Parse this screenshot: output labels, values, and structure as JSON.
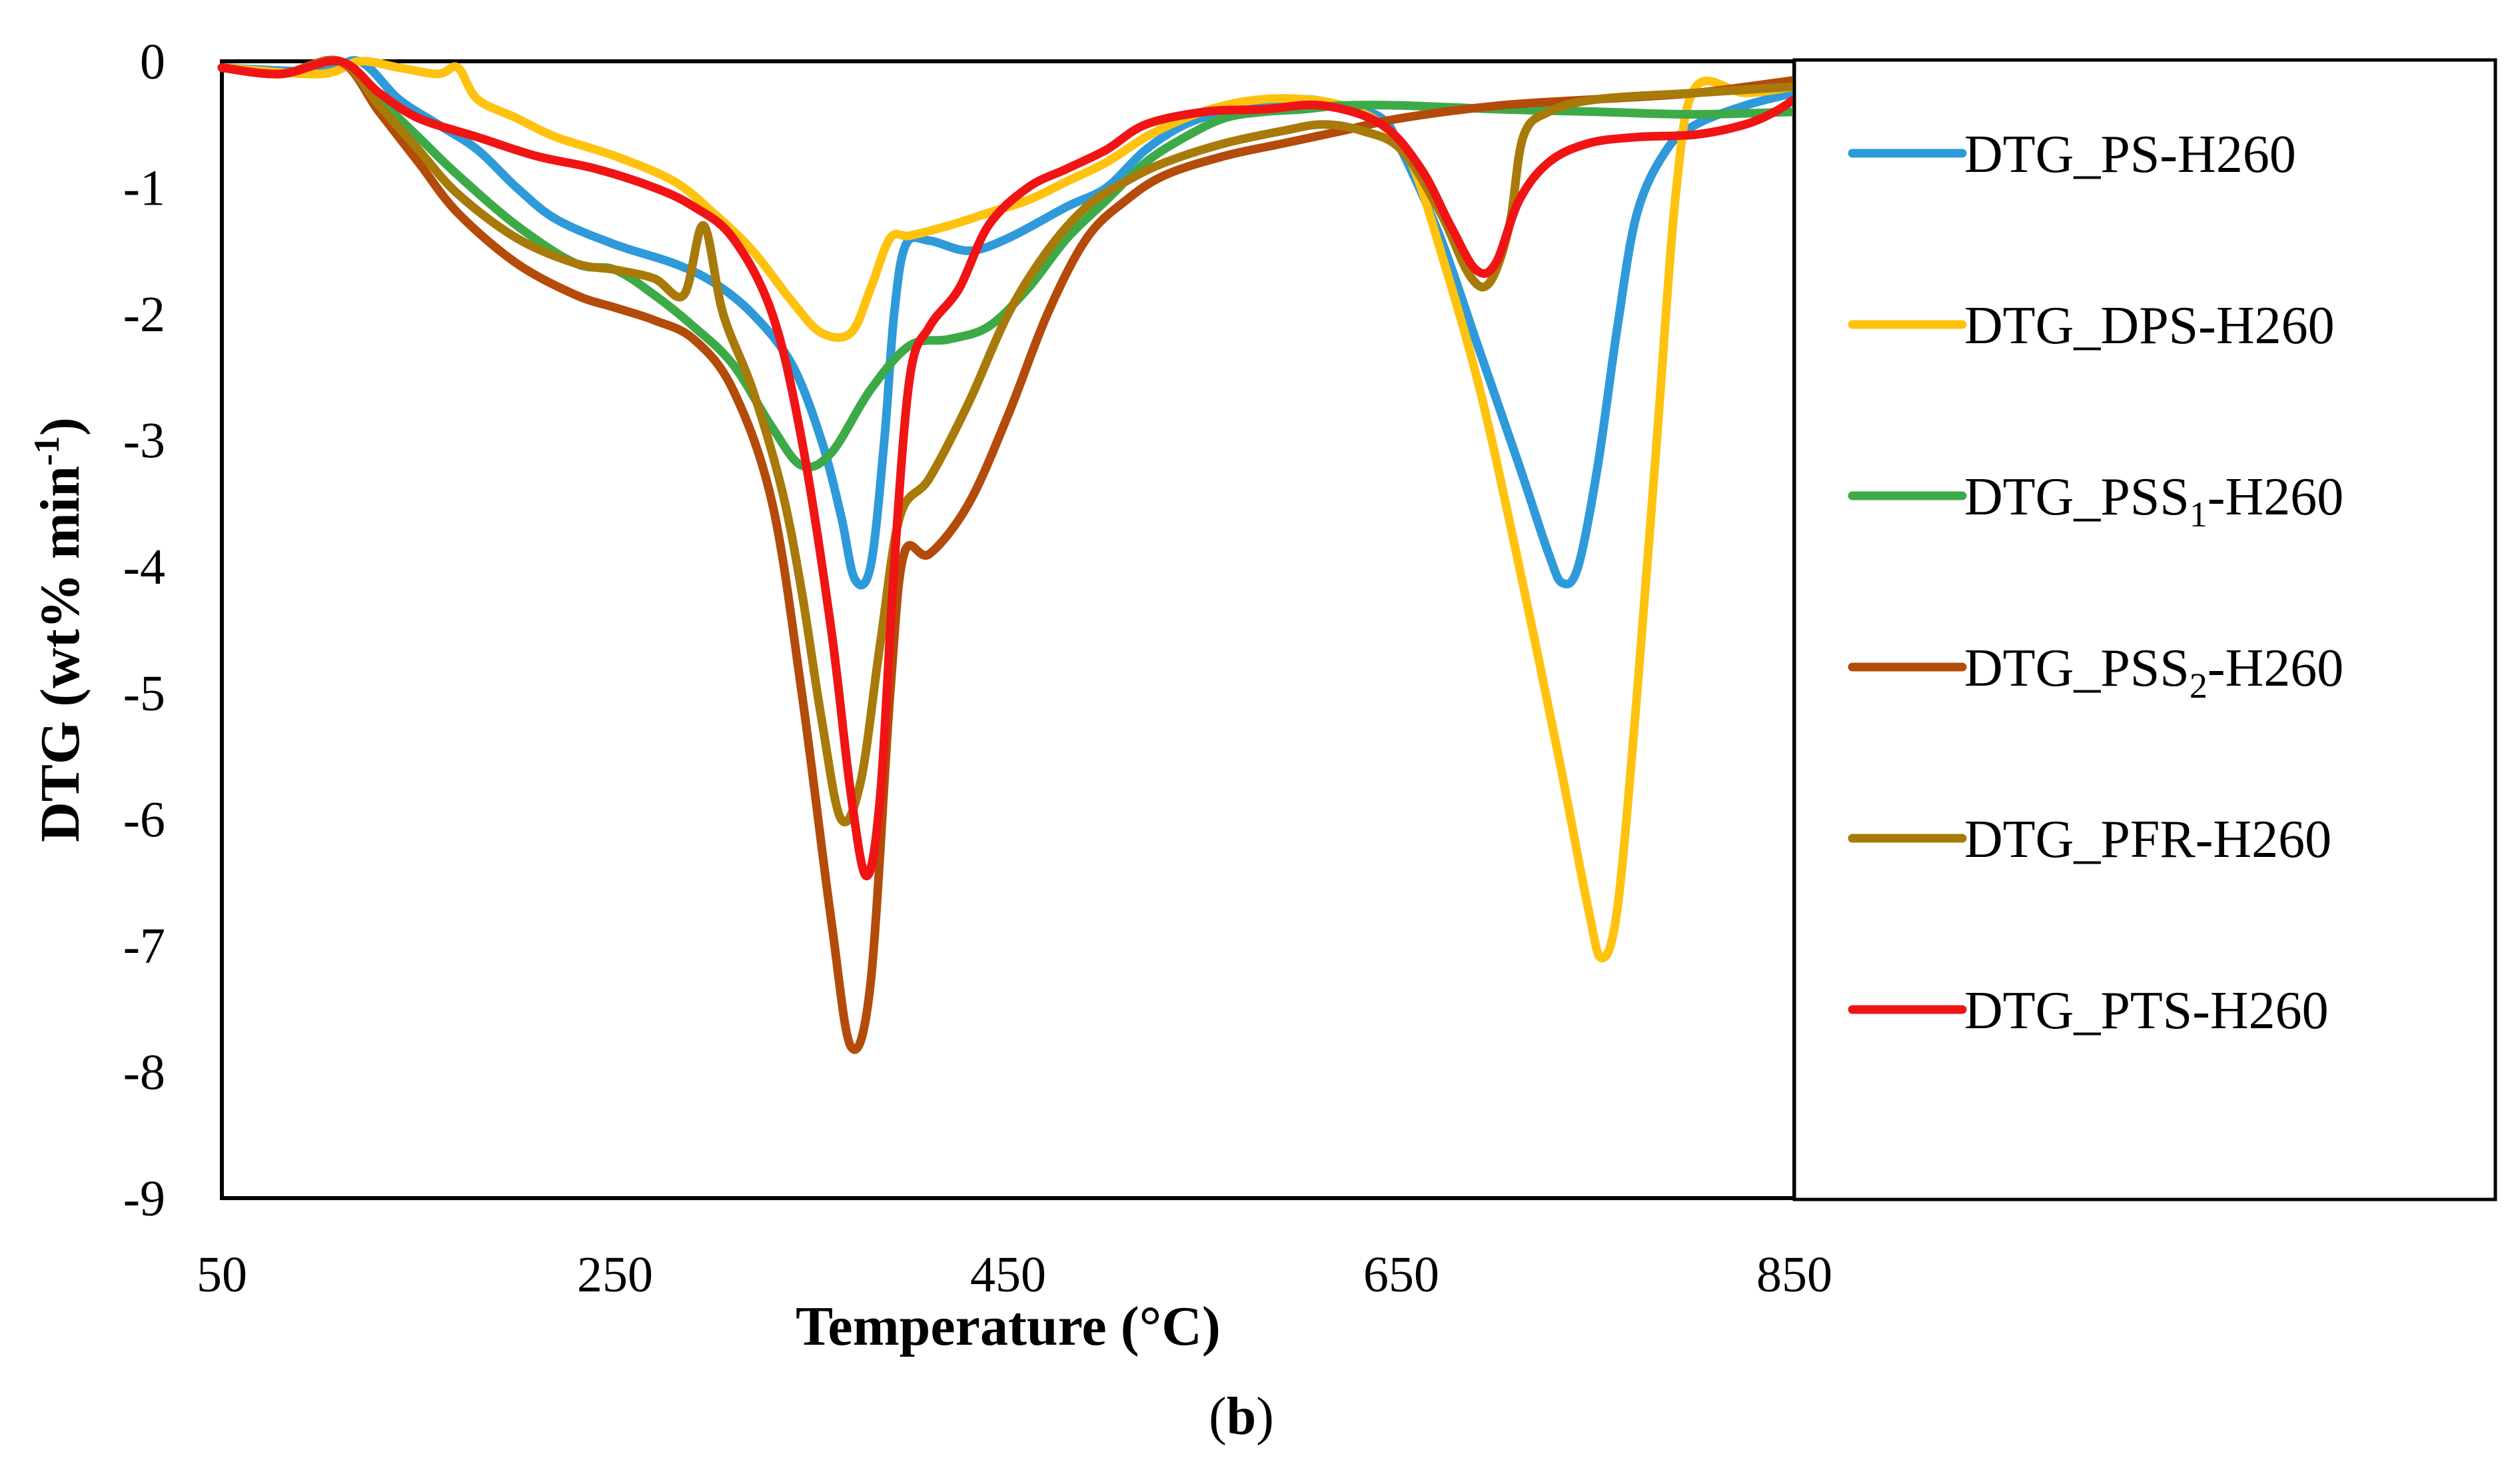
{
  "chart_data": {
    "type": "line",
    "xlabel": "Temperature (°C)",
    "ylabel": {
      "main": "DTG (wt% min",
      "sup": "-1",
      "close": ")"
    },
    "panel_label": {
      "open": "(",
      "letter": "b",
      "close": ")"
    },
    "xlim": [
      50,
      850
    ],
    "ylim": [
      -9,
      0
    ],
    "x_ticks": [
      50,
      250,
      450,
      650,
      850
    ],
    "x_tick_labels": [
      "50",
      "250",
      "450",
      "650",
      "850"
    ],
    "y_ticks": [
      0,
      -1,
      -2,
      -3,
      -4,
      -5,
      -6,
      -7,
      -8,
      -9
    ],
    "y_tick_labels": [
      "0",
      "-1",
      "-2",
      "-3",
      "-4",
      "-5",
      "-6",
      "-7",
      "-8",
      "-9"
    ],
    "grid": false,
    "legend_position": "right",
    "series": [
      {
        "name": "DTG_PS-H260",
        "legend": {
          "pre": "DTG_PS-H260"
        },
        "color": "#2E9AD9",
        "points": [
          [
            50,
            -0.05
          ],
          [
            100,
            -0.08
          ],
          [
            120,
            0
          ],
          [
            140,
            -0.3
          ],
          [
            160,
            -0.5
          ],
          [
            180,
            -0.7
          ],
          [
            200,
            -1.0
          ],
          [
            220,
            -1.25
          ],
          [
            250,
            -1.45
          ],
          [
            280,
            -1.6
          ],
          [
            300,
            -1.75
          ],
          [
            320,
            -2.0
          ],
          [
            340,
            -2.4
          ],
          [
            355,
            -3.0
          ],
          [
            365,
            -3.6
          ],
          [
            372,
            -4.1
          ],
          [
            380,
            -4.0
          ],
          [
            387,
            -3.0
          ],
          [
            392,
            -2.0
          ],
          [
            398,
            -1.45
          ],
          [
            410,
            -1.42
          ],
          [
            430,
            -1.5
          ],
          [
            450,
            -1.4
          ],
          [
            480,
            -1.15
          ],
          [
            500,
            -1.0
          ],
          [
            520,
            -0.7
          ],
          [
            540,
            -0.5
          ],
          [
            560,
            -0.4
          ],
          [
            580,
            -0.35
          ],
          [
            600,
            -0.3
          ],
          [
            620,
            -0.35
          ],
          [
            640,
            -0.45
          ],
          [
            650,
            -0.7
          ],
          [
            670,
            -1.4
          ],
          [
            690,
            -2.3
          ],
          [
            710,
            -3.2
          ],
          [
            725,
            -3.9
          ],
          [
            732,
            -4.13
          ],
          [
            740,
            -4.0
          ],
          [
            750,
            -3.2
          ],
          [
            760,
            -2.1
          ],
          [
            770,
            -1.2
          ],
          [
            785,
            -0.7
          ],
          [
            800,
            -0.5
          ],
          [
            825,
            -0.35
          ],
          [
            850,
            -0.25
          ]
        ]
      },
      {
        "name": "DTG_DPS-H260",
        "legend": {
          "pre": "DTG_DPS-H260"
        },
        "color": "#FFC20E",
        "points": [
          [
            50,
            -0.05
          ],
          [
            100,
            -0.1
          ],
          [
            120,
            0
          ],
          [
            140,
            -0.05
          ],
          [
            160,
            -0.1
          ],
          [
            170,
            -0.05
          ],
          [
            180,
            -0.3
          ],
          [
            200,
            -0.45
          ],
          [
            220,
            -0.6
          ],
          [
            250,
            -0.75
          ],
          [
            280,
            -0.95
          ],
          [
            300,
            -1.2
          ],
          [
            320,
            -1.5
          ],
          [
            340,
            -1.9
          ],
          [
            355,
            -2.15
          ],
          [
            370,
            -2.15
          ],
          [
            380,
            -1.8
          ],
          [
            390,
            -1.4
          ],
          [
            400,
            -1.38
          ],
          [
            420,
            -1.3
          ],
          [
            440,
            -1.2
          ],
          [
            460,
            -1.1
          ],
          [
            480,
            -0.95
          ],
          [
            500,
            -0.8
          ],
          [
            520,
            -0.6
          ],
          [
            540,
            -0.45
          ],
          [
            560,
            -0.35
          ],
          [
            580,
            -0.3
          ],
          [
            600,
            -0.3
          ],
          [
            620,
            -0.35
          ],
          [
            640,
            -0.5
          ],
          [
            655,
            -0.8
          ],
          [
            670,
            -1.5
          ],
          [
            690,
            -2.6
          ],
          [
            710,
            -4.0
          ],
          [
            730,
            -5.5
          ],
          [
            745,
            -6.7
          ],
          [
            752,
            -7.1
          ],
          [
            760,
            -6.7
          ],
          [
            770,
            -5.0
          ],
          [
            780,
            -3.0
          ],
          [
            790,
            -1.0
          ],
          [
            800,
            -0.2
          ],
          [
            825,
            -0.25
          ],
          [
            850,
            -0.2
          ]
        ]
      },
      {
        "name": "DTG_PSS1-H260",
        "legend": {
          "pre": "DTG_PSS",
          "sub": "1",
          "post": "-H260"
        },
        "color": "#3DAA48",
        "points": [
          [
            50,
            -0.05
          ],
          [
            80,
            -0.1
          ],
          [
            110,
            0
          ],
          [
            130,
            -0.3
          ],
          [
            150,
            -0.6
          ],
          [
            170,
            -0.9
          ],
          [
            200,
            -1.3
          ],
          [
            230,
            -1.6
          ],
          [
            250,
            -1.65
          ],
          [
            270,
            -1.85
          ],
          [
            290,
            -2.1
          ],
          [
            310,
            -2.4
          ],
          [
            330,
            -2.9
          ],
          [
            345,
            -3.2
          ],
          [
            360,
            -3.1
          ],
          [
            380,
            -2.6
          ],
          [
            400,
            -2.25
          ],
          [
            420,
            -2.2
          ],
          [
            440,
            -2.1
          ],
          [
            460,
            -1.8
          ],
          [
            480,
            -1.4
          ],
          [
            500,
            -1.1
          ],
          [
            520,
            -0.8
          ],
          [
            540,
            -0.6
          ],
          [
            560,
            -0.45
          ],
          [
            580,
            -0.4
          ],
          [
            600,
            -0.38
          ],
          [
            620,
            -0.35
          ],
          [
            650,
            -0.35
          ],
          [
            700,
            -0.38
          ],
          [
            750,
            -0.4
          ],
          [
            800,
            -0.42
          ],
          [
            850,
            -0.4
          ]
        ]
      },
      {
        "name": "DTG_PSS2-H260",
        "legend": {
          "pre": "DTG_PSS",
          "sub": "2",
          "post": "-H260"
        },
        "color": "#B44B0A",
        "points": [
          [
            50,
            -0.05
          ],
          [
            80,
            -0.1
          ],
          [
            110,
            0
          ],
          [
            130,
            -0.4
          ],
          [
            150,
            -0.8
          ],
          [
            170,
            -1.2
          ],
          [
            200,
            -1.6
          ],
          [
            230,
            -1.85
          ],
          [
            250,
            -1.95
          ],
          [
            270,
            -2.05
          ],
          [
            290,
            -2.2
          ],
          [
            310,
            -2.6
          ],
          [
            330,
            -3.5
          ],
          [
            345,
            -5.0
          ],
          [
            360,
            -6.8
          ],
          [
            370,
            -7.8
          ],
          [
            380,
            -7.3
          ],
          [
            390,
            -5.0
          ],
          [
            397,
            -3.9
          ],
          [
            410,
            -3.9
          ],
          [
            430,
            -3.5
          ],
          [
            450,
            -2.8
          ],
          [
            470,
            -2.0
          ],
          [
            490,
            -1.4
          ],
          [
            510,
            -1.1
          ],
          [
            530,
            -0.9
          ],
          [
            560,
            -0.75
          ],
          [
            590,
            -0.65
          ],
          [
            620,
            -0.55
          ],
          [
            650,
            -0.45
          ],
          [
            700,
            -0.35
          ],
          [
            750,
            -0.3
          ],
          [
            800,
            -0.25
          ],
          [
            850,
            -0.15
          ]
        ]
      },
      {
        "name": "DTG_PFR-H260",
        "legend": {
          "pre": "DTG_PFR-H260"
        },
        "color": "#A87A0A",
        "points": [
          [
            50,
            -0.05
          ],
          [
            80,
            -0.1
          ],
          [
            110,
            0
          ],
          [
            130,
            -0.35
          ],
          [
            150,
            -0.7
          ],
          [
            170,
            -1.05
          ],
          [
            200,
            -1.4
          ],
          [
            230,
            -1.6
          ],
          [
            250,
            -1.65
          ],
          [
            270,
            -1.72
          ],
          [
            285,
            -1.85
          ],
          [
            295,
            -1.3
          ],
          [
            305,
            -2.0
          ],
          [
            320,
            -2.6
          ],
          [
            335,
            -3.4
          ],
          [
            345,
            -4.2
          ],
          [
            355,
            -5.2
          ],
          [
            365,
            -6.0
          ],
          [
            375,
            -5.7
          ],
          [
            385,
            -4.6
          ],
          [
            395,
            -3.6
          ],
          [
            410,
            -3.3
          ],
          [
            430,
            -2.7
          ],
          [
            450,
            -2.0
          ],
          [
            470,
            -1.5
          ],
          [
            490,
            -1.15
          ],
          [
            510,
            -0.95
          ],
          [
            530,
            -0.8
          ],
          [
            560,
            -0.65
          ],
          [
            590,
            -0.55
          ],
          [
            610,
            -0.5
          ],
          [
            630,
            -0.55
          ],
          [
            650,
            -0.7
          ],
          [
            670,
            -1.2
          ],
          [
            685,
            -1.7
          ],
          [
            695,
            -1.75
          ],
          [
            705,
            -1.3
          ],
          [
            712,
            -0.6
          ],
          [
            725,
            -0.4
          ],
          [
            750,
            -0.3
          ],
          [
            800,
            -0.25
          ],
          [
            850,
            -0.2
          ]
        ]
      },
      {
        "name": "DTG_PTS-H260",
        "legend": {
          "pre": "DTG_PTS-H260"
        },
        "color": "#F01414",
        "points": [
          [
            50,
            -0.05
          ],
          [
            80,
            -0.1
          ],
          [
            110,
            0
          ],
          [
            130,
            -0.25
          ],
          [
            150,
            -0.45
          ],
          [
            180,
            -0.6
          ],
          [
            210,
            -0.75
          ],
          [
            240,
            -0.85
          ],
          [
            270,
            -1.0
          ],
          [
            290,
            -1.15
          ],
          [
            310,
            -1.4
          ],
          [
            330,
            -2.0
          ],
          [
            345,
            -3.0
          ],
          [
            360,
            -4.5
          ],
          [
            370,
            -5.8
          ],
          [
            378,
            -6.45
          ],
          [
            385,
            -5.8
          ],
          [
            392,
            -4.0
          ],
          [
            400,
            -2.5
          ],
          [
            410,
            -2.1
          ],
          [
            425,
            -1.8
          ],
          [
            440,
            -1.3
          ],
          [
            460,
            -1.0
          ],
          [
            480,
            -0.85
          ],
          [
            500,
            -0.7
          ],
          [
            520,
            -0.5
          ],
          [
            550,
            -0.4
          ],
          [
            580,
            -0.38
          ],
          [
            610,
            -0.35
          ],
          [
            640,
            -0.5
          ],
          [
            660,
            -0.85
          ],
          [
            675,
            -1.3
          ],
          [
            688,
            -1.65
          ],
          [
            698,
            -1.6
          ],
          [
            710,
            -1.1
          ],
          [
            725,
            -0.8
          ],
          [
            745,
            -0.65
          ],
          [
            770,
            -0.6
          ],
          [
            800,
            -0.58
          ],
          [
            825,
            -0.5
          ],
          [
            840,
            -0.4
          ],
          [
            850,
            -0.3
          ]
        ]
      }
    ]
  }
}
